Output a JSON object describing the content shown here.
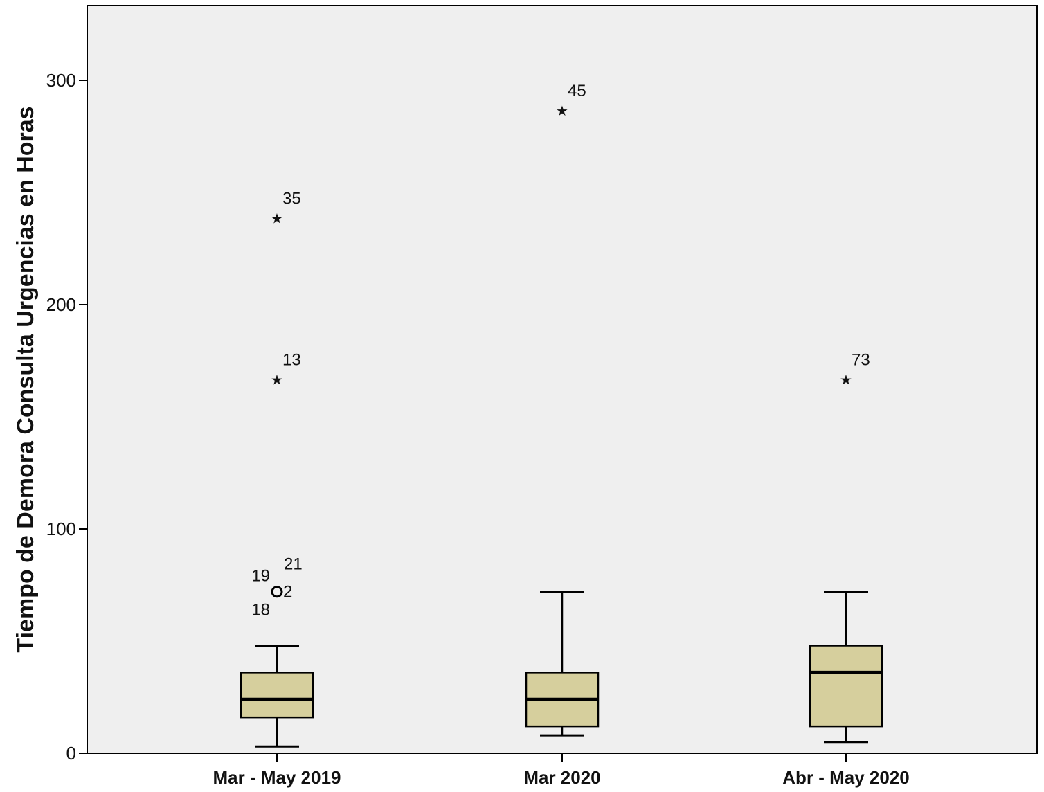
{
  "chart_data": {
    "type": "boxplot",
    "title": "",
    "xlabel": "",
    "ylabel": "Tiempo de Demora Consulta Urgencias en Horas",
    "ylim": [
      0,
      300
    ],
    "yticks": [
      0,
      100,
      200,
      300
    ],
    "grid": false,
    "legend": "none",
    "categories": [
      "Mar - May 2019",
      "Mar 2020",
      "Abr - May 2020"
    ],
    "boxes": [
      {
        "category": "Mar - May 2019",
        "min": 3,
        "q1": 16,
        "median": 24,
        "q3": 36,
        "max": 48
      },
      {
        "category": "Mar 2020",
        "min": 8,
        "q1": 12,
        "median": 24,
        "q3": 36,
        "max": 72
      },
      {
        "category": "Abr - May 2020",
        "min": 5,
        "q1": 12,
        "median": 36,
        "q3": 48,
        "max": 72
      }
    ],
    "outliers": [
      {
        "category": "Mar - May 2019",
        "value": 72,
        "marker": "circle",
        "label": "2"
      },
      {
        "category": "Mar - May 2019",
        "value": 72,
        "marker": "circle",
        "label": "18"
      },
      {
        "category": "Mar - May 2019",
        "value": 72,
        "marker": "circle",
        "label": "19"
      },
      {
        "category": "Mar - May 2019",
        "value": 72,
        "marker": "circle",
        "label": "21"
      },
      {
        "category": "Mar - May 2019",
        "value": 168,
        "marker": "star",
        "label": "13"
      },
      {
        "category": "Mar - May 2019",
        "value": 240,
        "marker": "star",
        "label": "35"
      },
      {
        "category": "Mar 2020",
        "value": 288,
        "marker": "star",
        "label": "45"
      },
      {
        "category": "Abr - May 2020",
        "value": 168,
        "marker": "star",
        "label": "73"
      }
    ],
    "colors": {
      "plot_background": "#efefef",
      "box_fill": "#d6cf9d",
      "stroke": "#000000"
    }
  }
}
